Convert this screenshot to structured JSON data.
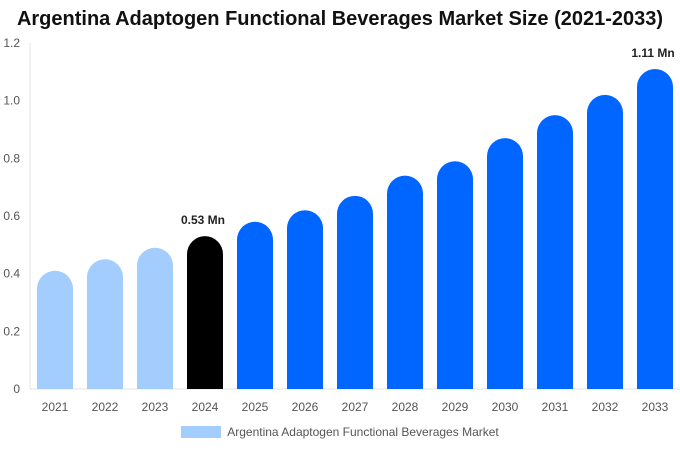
{
  "chart_data": {
    "type": "bar",
    "title": "Argentina Adaptogen Functional Beverages Market Size (2021-2033)",
    "categories": [
      "2021",
      "2022",
      "2023",
      "2024",
      "2025",
      "2026",
      "2027",
      "2028",
      "2029",
      "2030",
      "2031",
      "2032",
      "2033"
    ],
    "series": [
      {
        "name": "Argentina Adaptogen Functional Beverages Market",
        "values": [
          0.41,
          0.45,
          0.49,
          0.53,
          0.58,
          0.62,
          0.67,
          0.74,
          0.79,
          0.87,
          0.95,
          1.02,
          1.11
        ]
      }
    ],
    "yticks": [
      "0",
      "0.2",
      "0.4",
      "0.6",
      "0.8",
      "1.0",
      "1.2"
    ],
    "ylim": [
      0,
      1.2
    ],
    "grid": false,
    "legend_placement": "bottom",
    "data_labels": [
      {
        "index": 3,
        "text": "0.53 Mn"
      },
      {
        "index": 12,
        "text": "1.11 Mn"
      }
    ],
    "colors": {
      "historical": "#a3cdfc",
      "base_year": "#000000",
      "forecast": "#0066ff"
    }
  }
}
